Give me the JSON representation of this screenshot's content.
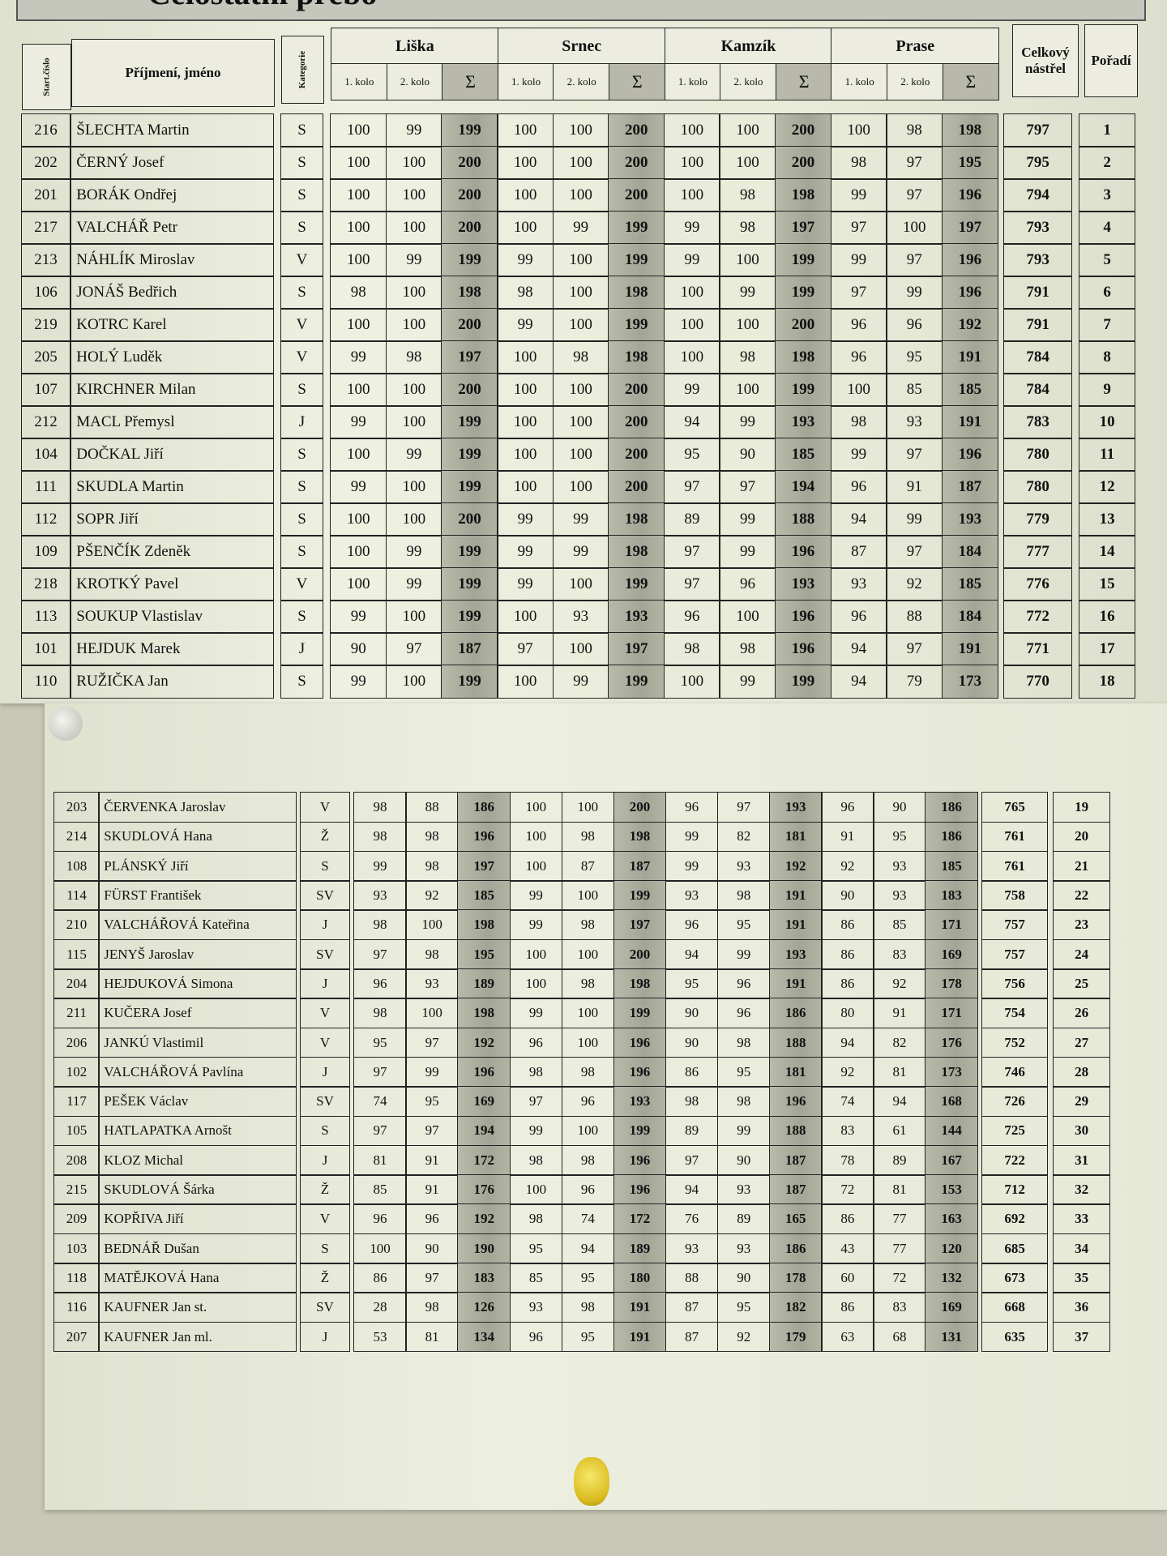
{
  "title": "Celostátní přebo",
  "header": {
    "start_no": "Start.číslo",
    "name": "Příjmení, jméno",
    "category": "Kategorie",
    "groups": [
      "Liška",
      "Srnec",
      "Kamzík",
      "Prase"
    ],
    "sub": [
      "1. kolo",
      "2. kolo",
      "Σ"
    ],
    "total": "Celkový nástřel",
    "rank": "Pořadí"
  },
  "top_rows": [
    {
      "start": "216",
      "name": "ŠLECHTA Martin",
      "cat": "S",
      "scores": [
        "100",
        "99",
        "199",
        "100",
        "100",
        "200",
        "100",
        "100",
        "200",
        "100",
        "98",
        "198"
      ],
      "total": "797",
      "rank": "1"
    },
    {
      "start": "202",
      "name": "ČERNÝ Josef",
      "cat": "S",
      "scores": [
        "100",
        "100",
        "200",
        "100",
        "100",
        "200",
        "100",
        "100",
        "200",
        "98",
        "97",
        "195"
      ],
      "total": "795",
      "rank": "2"
    },
    {
      "start": "201",
      "name": "BORÁK Ondřej",
      "cat": "S",
      "scores": [
        "100",
        "100",
        "200",
        "100",
        "100",
        "200",
        "100",
        "98",
        "198",
        "99",
        "97",
        "196"
      ],
      "total": "794",
      "rank": "3"
    },
    {
      "start": "217",
      "name": "VALCHÁŘ Petr",
      "cat": "S",
      "scores": [
        "100",
        "100",
        "200",
        "100",
        "99",
        "199",
        "99",
        "98",
        "197",
        "97",
        "100",
        "197"
      ],
      "total": "793",
      "rank": "4"
    },
    {
      "start": "213",
      "name": "NÁHLÍK Miroslav",
      "cat": "V",
      "scores": [
        "100",
        "99",
        "199",
        "99",
        "100",
        "199",
        "99",
        "100",
        "199",
        "99",
        "97",
        "196"
      ],
      "total": "793",
      "rank": "5"
    },
    {
      "start": "106",
      "name": "JONÁŠ Bedřich",
      "cat": "S",
      "scores": [
        "98",
        "100",
        "198",
        "98",
        "100",
        "198",
        "100",
        "99",
        "199",
        "97",
        "99",
        "196"
      ],
      "total": "791",
      "rank": "6"
    },
    {
      "start": "219",
      "name": "KOTRC Karel",
      "cat": "V",
      "scores": [
        "100",
        "100",
        "200",
        "99",
        "100",
        "199",
        "100",
        "100",
        "200",
        "96",
        "96",
        "192"
      ],
      "total": "791",
      "rank": "7"
    },
    {
      "start": "205",
      "name": "HOLÝ Luděk",
      "cat": "V",
      "scores": [
        "99",
        "98",
        "197",
        "100",
        "98",
        "198",
        "100",
        "98",
        "198",
        "96",
        "95",
        "191"
      ],
      "total": "784",
      "rank": "8"
    },
    {
      "start": "107",
      "name": "KIRCHNER Milan",
      "cat": "S",
      "scores": [
        "100",
        "100",
        "200",
        "100",
        "100",
        "200",
        "99",
        "100",
        "199",
        "100",
        "85",
        "185"
      ],
      "total": "784",
      "rank": "9"
    },
    {
      "start": "212",
      "name": "MACL Přemysl",
      "cat": "J",
      "scores": [
        "99",
        "100",
        "199",
        "100",
        "100",
        "200",
        "94",
        "99",
        "193",
        "98",
        "93",
        "191"
      ],
      "total": "783",
      "rank": "10"
    },
    {
      "start": "104",
      "name": "DOČKAL Jiří",
      "cat": "S",
      "scores": [
        "100",
        "99",
        "199",
        "100",
        "100",
        "200",
        "95",
        "90",
        "185",
        "99",
        "97",
        "196"
      ],
      "total": "780",
      "rank": "11"
    },
    {
      "start": "111",
      "name": "SKUDLA Martin",
      "cat": "S",
      "scores": [
        "99",
        "100",
        "199",
        "100",
        "100",
        "200",
        "97",
        "97",
        "194",
        "96",
        "91",
        "187"
      ],
      "total": "780",
      "rank": "12"
    },
    {
      "start": "112",
      "name": "SOPR Jiří",
      "cat": "S",
      "scores": [
        "100",
        "100",
        "200",
        "99",
        "99",
        "198",
        "89",
        "99",
        "188",
        "94",
        "99",
        "193"
      ],
      "total": "779",
      "rank": "13"
    },
    {
      "start": "109",
      "name": "PŠENČÍK Zdeněk",
      "cat": "S",
      "scores": [
        "100",
        "99",
        "199",
        "99",
        "99",
        "198",
        "97",
        "99",
        "196",
        "87",
        "97",
        "184"
      ],
      "total": "777",
      "rank": "14"
    },
    {
      "start": "218",
      "name": "KROTKÝ Pavel",
      "cat": "V",
      "scores": [
        "100",
        "99",
        "199",
        "99",
        "100",
        "199",
        "97",
        "96",
        "193",
        "93",
        "92",
        "185"
      ],
      "total": "776",
      "rank": "15"
    },
    {
      "start": "113",
      "name": "SOUKUP Vlastislav",
      "cat": "S",
      "scores": [
        "99",
        "100",
        "199",
        "100",
        "93",
        "193",
        "96",
        "100",
        "196",
        "96",
        "88",
        "184"
      ],
      "total": "772",
      "rank": "16"
    },
    {
      "start": "101",
      "name": "HEJDUK Marek",
      "cat": "J",
      "scores": [
        "90",
        "97",
        "187",
        "97",
        "100",
        "197",
        "98",
        "98",
        "196",
        "94",
        "97",
        "191"
      ],
      "total": "771",
      "rank": "17"
    },
    {
      "start": "110",
      "name": "RUŽIČKA Jan",
      "cat": "S",
      "scores": [
        "99",
        "100",
        "199",
        "100",
        "99",
        "199",
        "100",
        "99",
        "199",
        "94",
        "79",
        "173"
      ],
      "total": "770",
      "rank": "18"
    }
  ],
  "bottom_rows": [
    {
      "start": "203",
      "name": "ČERVENKA Jaroslav",
      "cat": "V",
      "scores": [
        "98",
        "88",
        "186",
        "100",
        "100",
        "200",
        "96",
        "97",
        "193",
        "96",
        "90",
        "186"
      ],
      "total": "765",
      "rank": "19"
    },
    {
      "start": "214",
      "name": "SKUDLOVÁ Hana",
      "cat": "Ž",
      "scores": [
        "98",
        "98",
        "196",
        "100",
        "98",
        "198",
        "99",
        "82",
        "181",
        "91",
        "95",
        "186"
      ],
      "total": "761",
      "rank": "20"
    },
    {
      "start": "108",
      "name": "PLÁNSKÝ Jiří",
      "cat": "S",
      "scores": [
        "99",
        "98",
        "197",
        "100",
        "87",
        "187",
        "99",
        "93",
        "192",
        "92",
        "93",
        "185"
      ],
      "total": "761",
      "rank": "21"
    },
    {
      "start": "114",
      "name": "FÜRST František",
      "cat": "SV",
      "scores": [
        "93",
        "92",
        "185",
        "99",
        "100",
        "199",
        "93",
        "98",
        "191",
        "90",
        "93",
        "183"
      ],
      "total": "758",
      "rank": "22"
    },
    {
      "start": "210",
      "name": "VALCHÁŘOVÁ Kateřina",
      "cat": "J",
      "scores": [
        "98",
        "100",
        "198",
        "99",
        "98",
        "197",
        "96",
        "95",
        "191",
        "86",
        "85",
        "171"
      ],
      "total": "757",
      "rank": "23"
    },
    {
      "start": "115",
      "name": "JENYŠ Jaroslav",
      "cat": "SV",
      "scores": [
        "97",
        "98",
        "195",
        "100",
        "100",
        "200",
        "94",
        "99",
        "193",
        "86",
        "83",
        "169"
      ],
      "total": "757",
      "rank": "24"
    },
    {
      "start": "204",
      "name": "HEJDUKOVÁ Simona",
      "cat": "J",
      "scores": [
        "96",
        "93",
        "189",
        "100",
        "98",
        "198",
        "95",
        "96",
        "191",
        "86",
        "92",
        "178"
      ],
      "total": "756",
      "rank": "25"
    },
    {
      "start": "211",
      "name": "KUČERA Josef",
      "cat": "V",
      "scores": [
        "98",
        "100",
        "198",
        "99",
        "100",
        "199",
        "90",
        "96",
        "186",
        "80",
        "91",
        "171"
      ],
      "total": "754",
      "rank": "26"
    },
    {
      "start": "206",
      "name": "JANKÚ Vlastimil",
      "cat": "V",
      "scores": [
        "95",
        "97",
        "192",
        "96",
        "100",
        "196",
        "90",
        "98",
        "188",
        "94",
        "82",
        "176"
      ],
      "total": "752",
      "rank": "27"
    },
    {
      "start": "102",
      "name": "VALCHÁŘOVÁ Pavlína",
      "cat": "J",
      "scores": [
        "97",
        "99",
        "196",
        "98",
        "98",
        "196",
        "86",
        "95",
        "181",
        "92",
        "81",
        "173"
      ],
      "total": "746",
      "rank": "28"
    },
    {
      "start": "117",
      "name": "PEŠEK Václav",
      "cat": "SV",
      "scores": [
        "74",
        "95",
        "169",
        "97",
        "96",
        "193",
        "98",
        "98",
        "196",
        "74",
        "94",
        "168"
      ],
      "total": "726",
      "rank": "29"
    },
    {
      "start": "105",
      "name": "HATLAPATKA Arnošt",
      "cat": "S",
      "scores": [
        "97",
        "97",
        "194",
        "99",
        "100",
        "199",
        "89",
        "99",
        "188",
        "83",
        "61",
        "144"
      ],
      "total": "725",
      "rank": "30"
    },
    {
      "start": "208",
      "name": "KLOZ Michal",
      "cat": "J",
      "scores": [
        "81",
        "91",
        "172",
        "98",
        "98",
        "196",
        "97",
        "90",
        "187",
        "78",
        "89",
        "167"
      ],
      "total": "722",
      "rank": "31"
    },
    {
      "start": "215",
      "name": "SKUDLOVÁ Šárka",
      "cat": "Ž",
      "scores": [
        "85",
        "91",
        "176",
        "100",
        "96",
        "196",
        "94",
        "93",
        "187",
        "72",
        "81",
        "153"
      ],
      "total": "712",
      "rank": "32"
    },
    {
      "start": "209",
      "name": "KOPŘIVA Jiří",
      "cat": "V",
      "scores": [
        "96",
        "96",
        "192",
        "98",
        "74",
        "172",
        "76",
        "89",
        "165",
        "86",
        "77",
        "163"
      ],
      "total": "692",
      "rank": "33"
    },
    {
      "start": "103",
      "name": "BEDNÁŘ Dušan",
      "cat": "S",
      "scores": [
        "100",
        "90",
        "190",
        "95",
        "94",
        "189",
        "93",
        "93",
        "186",
        "43",
        "77",
        "120"
      ],
      "total": "685",
      "rank": "34"
    },
    {
      "start": "118",
      "name": "MATĚJKOVÁ Hana",
      "cat": "Ž",
      "scores": [
        "86",
        "97",
        "183",
        "85",
        "95",
        "180",
        "88",
        "90",
        "178",
        "60",
        "72",
        "132"
      ],
      "total": "673",
      "rank": "35"
    },
    {
      "start": "116",
      "name": "KAUFNER Jan st.",
      "cat": "SV",
      "scores": [
        "28",
        "98",
        "126",
        "93",
        "98",
        "191",
        "87",
        "95",
        "182",
        "86",
        "83",
        "169"
      ],
      "total": "668",
      "rank": "36"
    },
    {
      "start": "207",
      "name": "KAUFNER Jan ml.",
      "cat": "J",
      "scores": [
        "53",
        "81",
        "134",
        "96",
        "95",
        "191",
        "87",
        "92",
        "179",
        "63",
        "68",
        "131"
      ],
      "total": "635",
      "rank": "37"
    }
  ],
  "colors": {
    "paper": "#eceedf",
    "sum_shade": "#a8aa9a",
    "wall": "#c9c8b6",
    "pin_yellow": "#e7cf2a"
  }
}
